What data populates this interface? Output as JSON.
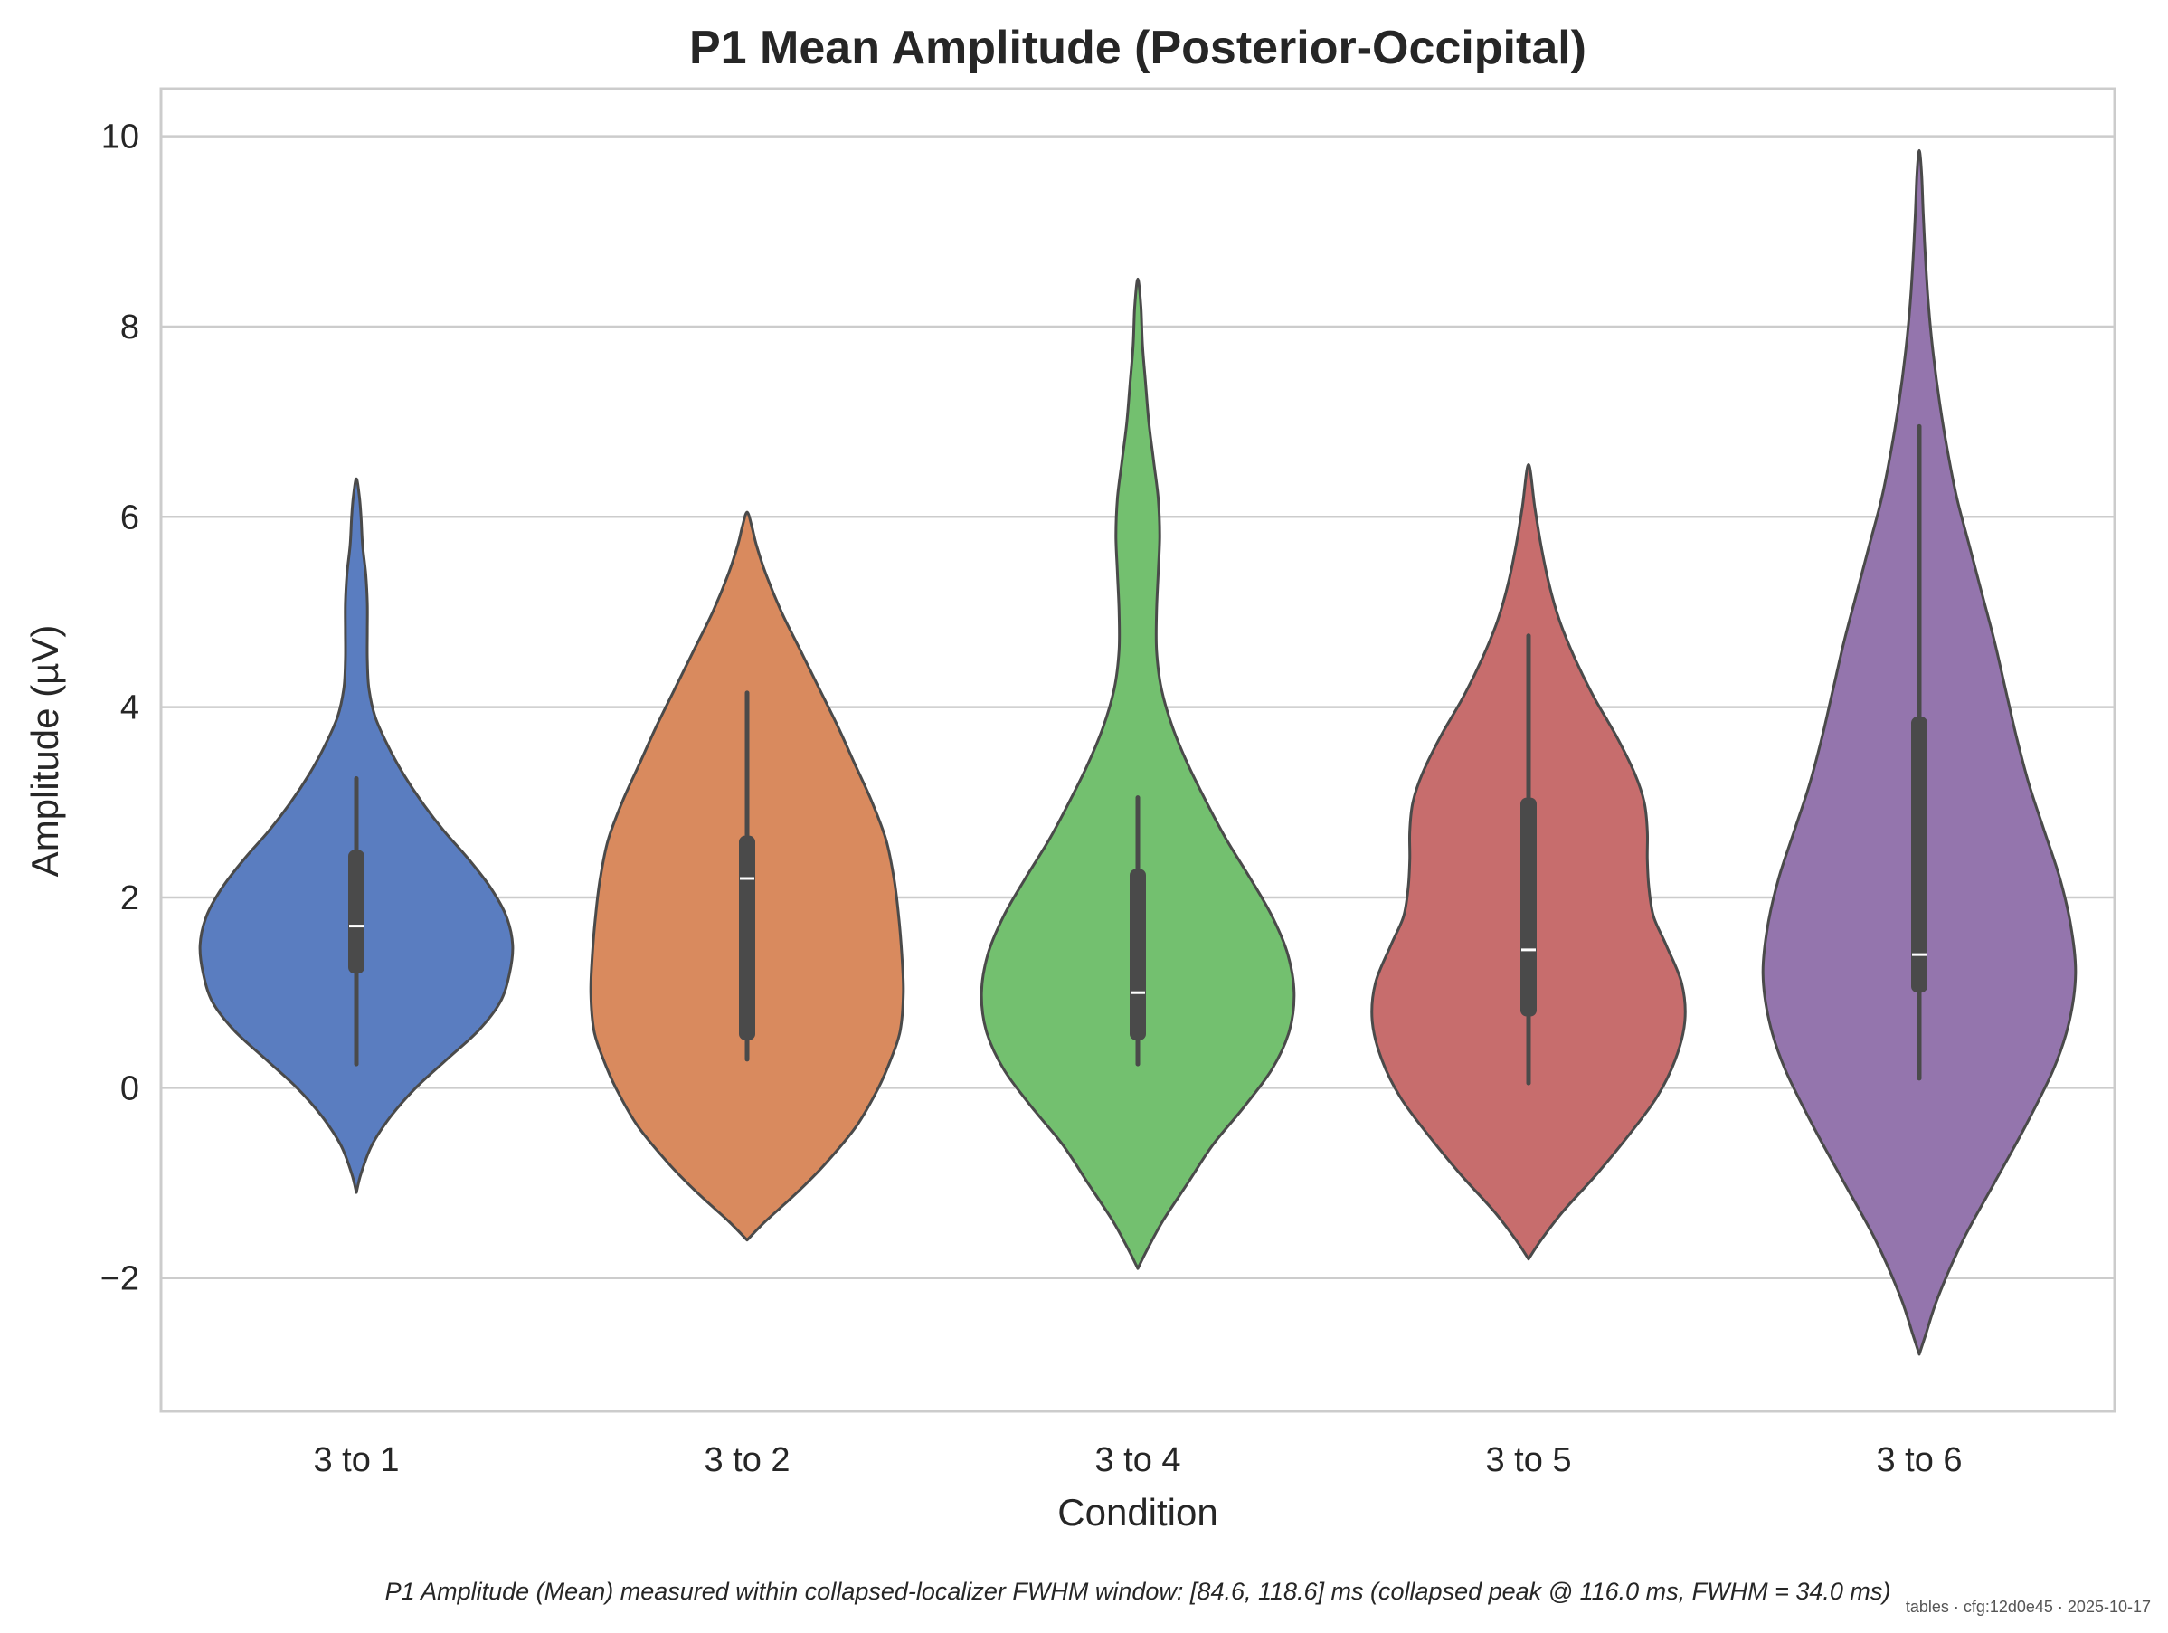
{
  "chart_data": {
    "type": "violin",
    "title": "P1 Mean Amplitude (Posterior-Occipital)",
    "xlabel": "Condition",
    "ylabel": "Amplitude (µV)",
    "ylim": [
      -3.4,
      10.5
    ],
    "yticks": [
      -2,
      0,
      2,
      4,
      6,
      8,
      10
    ],
    "ytick_labels": [
      "−2",
      "0",
      "2",
      "4",
      "6",
      "8",
      "10"
    ],
    "grid": "horizontal",
    "categories": [
      "3 to 1",
      "3 to 2",
      "3 to 4",
      "3 to 5",
      "3 to 6"
    ],
    "colors": [
      "#5a7dc0",
      "#d98a5e",
      "#73c06f",
      "#c76d6d",
      "#9475ad"
    ],
    "outline_color": "#4a4a4a",
    "violins": [
      {
        "category": "3 to 1",
        "min": -1.1,
        "max": 6.4,
        "q1": 1.2,
        "median": 1.7,
        "q3": 2.5,
        "whisker_low": 0.25,
        "whisker_high": 3.25,
        "density": [
          [
            -1.1,
            0.0
          ],
          [
            -0.9,
            0.03
          ],
          [
            -0.6,
            0.1
          ],
          [
            -0.3,
            0.22
          ],
          [
            0.0,
            0.38
          ],
          [
            0.3,
            0.58
          ],
          [
            0.6,
            0.78
          ],
          [
            0.9,
            0.92
          ],
          [
            1.2,
            0.98
          ],
          [
            1.5,
            1.0
          ],
          [
            1.8,
            0.96
          ],
          [
            2.1,
            0.86
          ],
          [
            2.4,
            0.72
          ],
          [
            2.7,
            0.56
          ],
          [
            3.0,
            0.42
          ],
          [
            3.3,
            0.3
          ],
          [
            3.6,
            0.2
          ],
          [
            3.9,
            0.12
          ],
          [
            4.2,
            0.08
          ],
          [
            4.5,
            0.07
          ],
          [
            4.8,
            0.07
          ],
          [
            5.1,
            0.07
          ],
          [
            5.4,
            0.06
          ],
          [
            5.7,
            0.04
          ],
          [
            6.0,
            0.03
          ],
          [
            6.2,
            0.02
          ],
          [
            6.4,
            0.0
          ]
        ]
      },
      {
        "category": "3 to 2",
        "min": -1.6,
        "max": 6.05,
        "q1": 0.5,
        "median": 2.2,
        "q3": 2.65,
        "whisker_low": 0.3,
        "whisker_high": 4.15,
        "density": [
          [
            -1.6,
            0.0
          ],
          [
            -1.4,
            0.12
          ],
          [
            -1.1,
            0.32
          ],
          [
            -0.8,
            0.5
          ],
          [
            -0.4,
            0.7
          ],
          [
            0.0,
            0.84
          ],
          [
            0.3,
            0.92
          ],
          [
            0.6,
            0.98
          ],
          [
            1.0,
            1.0
          ],
          [
            1.4,
            0.99
          ],
          [
            1.8,
            0.97
          ],
          [
            2.2,
            0.94
          ],
          [
            2.6,
            0.89
          ],
          [
            3.0,
            0.8
          ],
          [
            3.4,
            0.69
          ],
          [
            3.8,
            0.58
          ],
          [
            4.2,
            0.46
          ],
          [
            4.6,
            0.34
          ],
          [
            5.0,
            0.22
          ],
          [
            5.4,
            0.12
          ],
          [
            5.7,
            0.06
          ],
          [
            5.9,
            0.03
          ],
          [
            6.05,
            0.0
          ]
        ]
      },
      {
        "category": "3 to 4",
        "min": -1.9,
        "max": 8.5,
        "q1": 0.5,
        "median": 1.0,
        "q3": 2.3,
        "whisker_low": 0.25,
        "whisker_high": 3.05,
        "density": [
          [
            -1.9,
            0.0
          ],
          [
            -1.7,
            0.06
          ],
          [
            -1.4,
            0.16
          ],
          [
            -1.0,
            0.32
          ],
          [
            -0.6,
            0.48
          ],
          [
            -0.2,
            0.68
          ],
          [
            0.2,
            0.86
          ],
          [
            0.6,
            0.97
          ],
          [
            1.0,
            1.0
          ],
          [
            1.4,
            0.96
          ],
          [
            1.8,
            0.86
          ],
          [
            2.2,
            0.72
          ],
          [
            2.6,
            0.57
          ],
          [
            3.0,
            0.44
          ],
          [
            3.4,
            0.32
          ],
          [
            3.8,
            0.22
          ],
          [
            4.2,
            0.15
          ],
          [
            4.6,
            0.12
          ],
          [
            5.0,
            0.12
          ],
          [
            5.4,
            0.13
          ],
          [
            5.8,
            0.14
          ],
          [
            6.2,
            0.13
          ],
          [
            6.6,
            0.1
          ],
          [
            7.0,
            0.07
          ],
          [
            7.4,
            0.05
          ],
          [
            7.8,
            0.03
          ],
          [
            8.2,
            0.02
          ],
          [
            8.5,
            0.0
          ]
        ]
      },
      {
        "category": "3 to 5",
        "min": -1.8,
        "max": 6.55,
        "q1": 0.75,
        "median": 1.45,
        "q3": 3.05,
        "whisker_low": 0.05,
        "whisker_high": 4.75,
        "density": [
          [
            -1.8,
            0.0
          ],
          [
            -1.6,
            0.08
          ],
          [
            -1.3,
            0.22
          ],
          [
            -0.9,
            0.44
          ],
          [
            -0.5,
            0.64
          ],
          [
            -0.1,
            0.82
          ],
          [
            0.3,
            0.94
          ],
          [
            0.7,
            1.0
          ],
          [
            1.1,
            0.98
          ],
          [
            1.5,
            0.88
          ],
          [
            1.8,
            0.8
          ],
          [
            2.1,
            0.77
          ],
          [
            2.4,
            0.76
          ],
          [
            2.7,
            0.76
          ],
          [
            3.0,
            0.74
          ],
          [
            3.3,
            0.68
          ],
          [
            3.7,
            0.56
          ],
          [
            4.1,
            0.42
          ],
          [
            4.5,
            0.3
          ],
          [
            4.9,
            0.2
          ],
          [
            5.3,
            0.13
          ],
          [
            5.7,
            0.08
          ],
          [
            6.1,
            0.04
          ],
          [
            6.55,
            0.0
          ]
        ]
      },
      {
        "category": "3 to 6",
        "min": -2.8,
        "max": 9.85,
        "q1": 1.0,
        "median": 1.4,
        "q3": 3.9,
        "whisker_low": 0.1,
        "whisker_high": 6.95,
        "density": [
          [
            -2.8,
            0.0
          ],
          [
            -2.6,
            0.04
          ],
          [
            -2.2,
            0.12
          ],
          [
            -1.6,
            0.28
          ],
          [
            -1.0,
            0.48
          ],
          [
            -0.4,
            0.68
          ],
          [
            0.2,
            0.86
          ],
          [
            0.7,
            0.96
          ],
          [
            1.2,
            1.0
          ],
          [
            1.7,
            0.97
          ],
          [
            2.2,
            0.9
          ],
          [
            2.7,
            0.8
          ],
          [
            3.2,
            0.7
          ],
          [
            3.7,
            0.62
          ],
          [
            4.2,
            0.55
          ],
          [
            4.7,
            0.48
          ],
          [
            5.2,
            0.4
          ],
          [
            5.7,
            0.32
          ],
          [
            6.2,
            0.24
          ],
          [
            6.7,
            0.18
          ],
          [
            7.2,
            0.13
          ],
          [
            7.7,
            0.09
          ],
          [
            8.2,
            0.06
          ],
          [
            8.7,
            0.04
          ],
          [
            9.2,
            0.025
          ],
          [
            9.6,
            0.015
          ],
          [
            9.85,
            0.0
          ]
        ]
      }
    ],
    "caption": "P1 Amplitude (Mean) measured within collapsed-localizer FWHM window: [84.6, 118.6] ms (collapsed peak @ 116.0 ms, FWHM = 34.0 ms)",
    "stamp": "tables · cfg:12d0e45 · 2025-10-17"
  }
}
